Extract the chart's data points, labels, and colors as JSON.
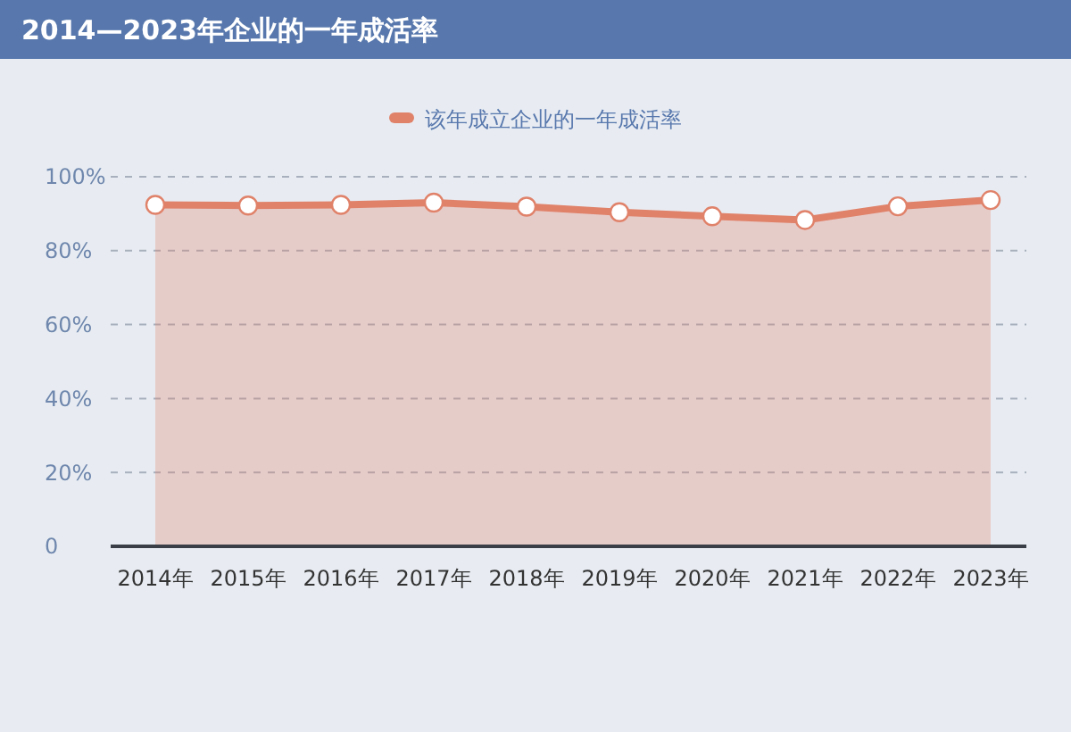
{
  "chart_data": {
    "type": "area",
    "title": "2014—2023年企业的一年成活率",
    "categories": [
      "2014年",
      "2015年",
      "2016年",
      "2017年",
      "2018年",
      "2019年",
      "2020年",
      "2021年",
      "2022年",
      "2023年"
    ],
    "series": [
      {
        "name": "该年成立企业的一年成活率",
        "color": "#e0826a",
        "values": [
          92.4,
          92.2,
          92.4,
          93.0,
          91.9,
          90.4,
          89.3,
          88.3,
          92.0,
          93.7
        ]
      }
    ],
    "ylim": [
      0,
      100
    ],
    "yticks": [
      {
        "value": 0,
        "label": "0"
      },
      {
        "value": 20,
        "label": "20%"
      },
      {
        "value": 40,
        "label": "40%"
      },
      {
        "value": 60,
        "label": "60%"
      },
      {
        "value": 80,
        "label": "80%"
      },
      {
        "value": 100,
        "label": "100%"
      }
    ],
    "grid": "y",
    "legend": "top",
    "marker": "circle"
  }
}
